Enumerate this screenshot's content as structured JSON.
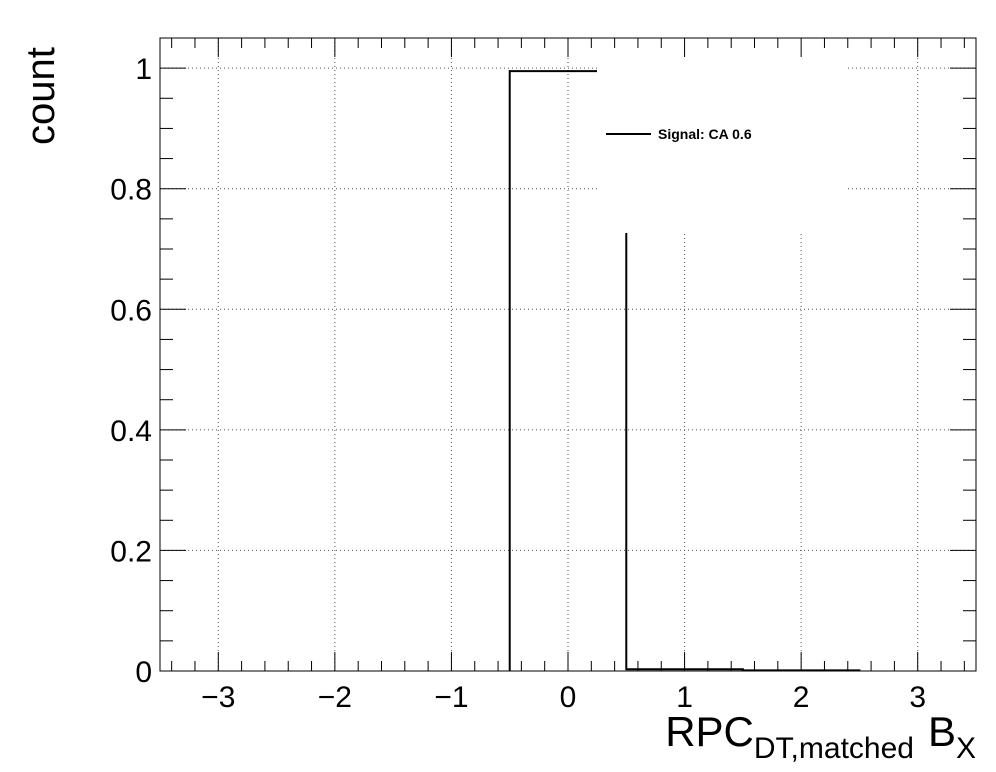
{
  "chart_data": {
    "type": "line",
    "title": "",
    "xlabel": "RPC",
    "xlabel_sub": "DT,matched",
    "xlabel_tail": "B",
    "xlabel_tail_sub": "X",
    "ylabel": "count",
    "xlim": [
      -3.5,
      3.5
    ],
    "ylim": [
      0,
      1.05
    ],
    "x_ticks": [
      -3,
      -2,
      -1,
      0,
      1,
      2,
      3
    ],
    "x_tick_labels": [
      "−3",
      "−2",
      "−1",
      "0",
      "1",
      "2",
      "3"
    ],
    "y_ticks": [
      0,
      0.2,
      0.4,
      0.6,
      0.8,
      1
    ],
    "y_tick_labels": [
      "0",
      "0.2",
      "0.4",
      "0.6",
      "0.8",
      "1"
    ],
    "grid": true,
    "legend_position": "top-right",
    "series": [
      {
        "name": "Signal: CA 0.6",
        "color": "#000000",
        "bin_edges": [
          -0.5,
          0.5,
          1.5,
          2.5
        ],
        "values": [
          0.995,
          0.003,
          0.001
        ]
      }
    ]
  }
}
